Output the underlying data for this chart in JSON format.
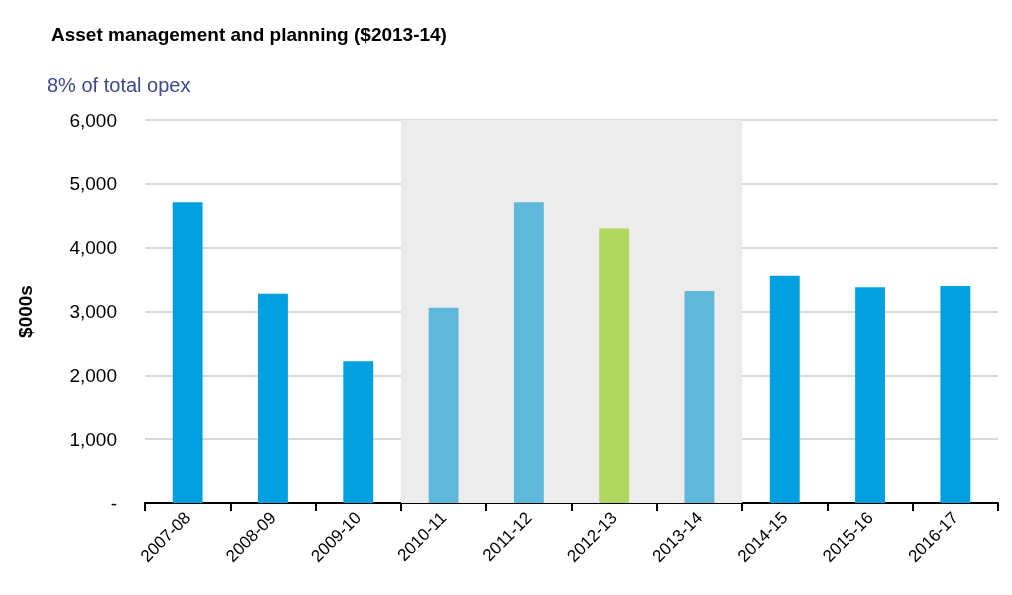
{
  "chart_data": {
    "type": "bar",
    "title": "Asset management and planning ($2013-14)",
    "subtitle": "8% of total opex",
    "ylabel": "$000s",
    "categories": [
      "2007-08",
      "2008-09",
      "2009-10",
      "2010-11",
      "2011-12",
      "2012-13",
      "2013-14",
      "2014-15",
      "2015-16",
      "2016-17"
    ],
    "values": [
      4710,
      3280,
      2220,
      3060,
      4710,
      4300,
      3320,
      3560,
      3380,
      3400
    ],
    "colors": [
      "#009fdf",
      "#009fdf",
      "#009fdf",
      "#5fb7da",
      "#5fb7da",
      "#b1d660",
      "#5fb7da",
      "#009fdf",
      "#009fdf",
      "#009fdf"
    ],
    "ylim": [
      0,
      6000
    ],
    "yticks": [
      {
        "value": 0,
        "label": "-"
      },
      {
        "value": 1000,
        "label": "1,000"
      },
      {
        "value": 2000,
        "label": "2,000"
      },
      {
        "value": 3000,
        "label": "3,000"
      },
      {
        "value": 4000,
        "label": "4,000"
      },
      {
        "value": 5000,
        "label": "5,000"
      },
      {
        "value": 6000,
        "label": "6,000"
      }
    ],
    "bands": [
      {
        "axis": "x",
        "from": "2010-11",
        "to": "2013-14",
        "color": "#ececec"
      }
    ],
    "grid": "y"
  }
}
